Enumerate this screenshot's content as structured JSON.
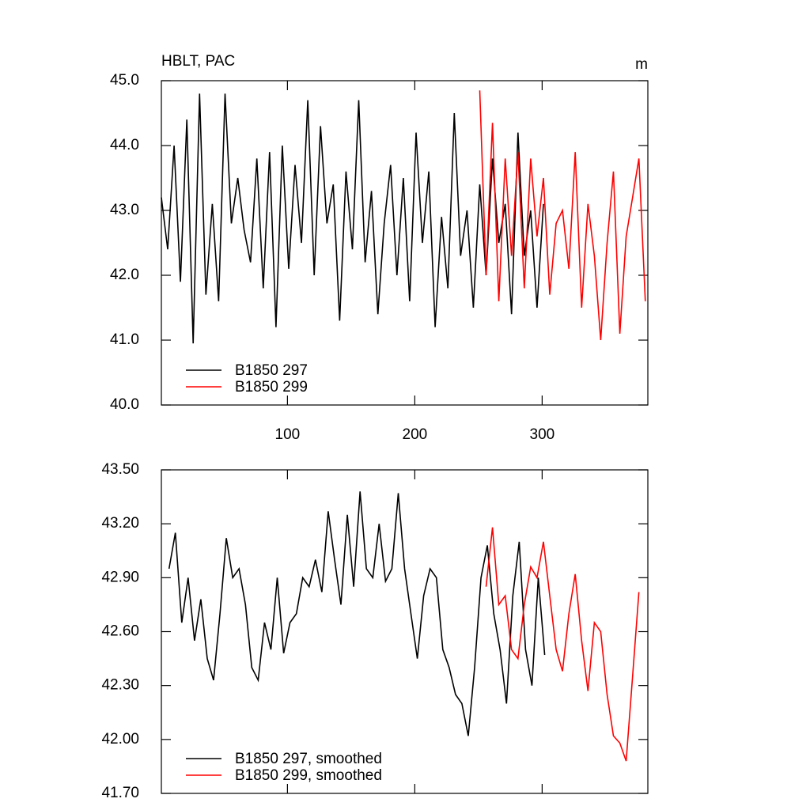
{
  "chart_data": [
    {
      "type": "line",
      "title": "HBLT, PAC",
      "units": "m",
      "xlim": [
        1,
        383
      ],
      "xticks": [
        100,
        200,
        300
      ],
      "xtick_labels_shown": true,
      "ylim": [
        40,
        45
      ],
      "yticks": [
        {
          "value": 40,
          "label": "40.0"
        },
        {
          "value": 41,
          "label": "41.0"
        },
        {
          "value": 42,
          "label": "42.0"
        },
        {
          "value": 43,
          "label": "43.0"
        },
        {
          "value": 44,
          "label": "44.0"
        },
        {
          "value": 45,
          "label": "45.0"
        }
      ],
      "legend": "lower left",
      "series": [
        {
          "name": "B1850 297",
          "color": "#000000",
          "x": [
            1,
            6,
            11,
            16,
            21,
            26,
            31,
            36,
            41,
            46,
            51,
            56,
            61,
            66,
            71,
            76,
            81,
            86,
            91,
            96,
            101,
            106,
            111,
            116,
            121,
            126,
            131,
            136,
            141,
            146,
            151,
            156,
            161,
            166,
            171,
            176,
            181,
            186,
            191,
            196,
            201,
            206,
            211,
            216,
            221,
            226,
            231,
            236,
            241,
            246,
            251,
            256,
            261,
            266,
            271,
            276,
            281,
            286,
            291,
            296,
            301
          ],
          "values": [
            43.2,
            42.4,
            44.0,
            41.9,
            44.4,
            40.95,
            44.8,
            41.7,
            43.1,
            41.6,
            44.8,
            42.8,
            43.5,
            42.7,
            42.2,
            43.8,
            41.8,
            43.9,
            41.2,
            44.0,
            42.1,
            43.7,
            42.5,
            44.7,
            42.0,
            44.3,
            42.8,
            43.4,
            41.3,
            43.6,
            42.4,
            44.7,
            42.2,
            43.3,
            41.4,
            42.8,
            43.7,
            42.0,
            43.5,
            41.6,
            44.2,
            42.5,
            43.6,
            41.2,
            42.9,
            41.8,
            44.5,
            42.3,
            43.0,
            41.5,
            43.4,
            42.0,
            43.8,
            42.5,
            43.1,
            41.4,
            44.2,
            42.3,
            43.0,
            41.5,
            43.1
          ]
        },
        {
          "name": "B1850 299",
          "color": "#ff0000",
          "x": [
            251,
            256,
            261,
            266,
            271,
            276,
            281,
            286,
            291,
            296,
            301,
            306,
            311,
            316,
            321,
            326,
            331,
            336,
            341,
            346,
            351,
            356,
            361,
            366,
            371,
            376,
            381
          ],
          "values": [
            44.85,
            42.0,
            44.35,
            41.6,
            43.8,
            42.3,
            43.9,
            41.8,
            43.8,
            42.6,
            43.5,
            41.7,
            42.8,
            43.0,
            42.1,
            43.9,
            41.5,
            43.1,
            42.3,
            41.0,
            42.5,
            43.6,
            41.1,
            42.6,
            43.2,
            43.8,
            41.6
          ]
        }
      ]
    },
    {
      "type": "line",
      "xlim": [
        1,
        383
      ],
      "xticks": [
        100,
        200,
        300
      ],
      "xtick_labels_shown": false,
      "ylim": [
        41.7,
        43.5
      ],
      "yticks": [
        {
          "value": 41.7,
          "label": "41.70"
        },
        {
          "value": 42,
          "label": "42.00"
        },
        {
          "value": 42.3,
          "label": "42.30"
        },
        {
          "value": 42.6,
          "label": "42.60"
        },
        {
          "value": 42.9,
          "label": "42.90"
        },
        {
          "value": 43.2,
          "label": "43.20"
        },
        {
          "value": 43.5,
          "label": "43.50"
        }
      ],
      "legend": "lower left",
      "series": [
        {
          "name": "B1850 297, smoothed",
          "color": "#000000",
          "x": [
            7,
            12,
            17,
            22,
            27,
            32,
            37,
            42,
            47,
            52,
            57,
            62,
            67,
            72,
            77,
            82,
            87,
            92,
            97,
            102,
            107,
            112,
            117,
            122,
            127,
            132,
            137,
            142,
            147,
            152,
            157,
            162,
            167,
            172,
            177,
            182,
            187,
            192,
            197,
            202,
            207,
            212,
            217,
            222,
            227,
            232,
            237,
            242,
            247,
            252,
            257,
            262,
            267,
            272,
            277,
            282,
            287,
            292,
            297,
            302
          ],
          "values": [
            42.95,
            43.15,
            42.65,
            42.9,
            42.55,
            42.78,
            42.45,
            42.33,
            42.7,
            43.12,
            42.9,
            42.95,
            42.75,
            42.4,
            42.33,
            42.65,
            42.5,
            42.9,
            42.48,
            42.65,
            42.7,
            42.9,
            42.85,
            43.0,
            42.82,
            43.27,
            43.0,
            42.75,
            43.25,
            42.85,
            43.38,
            42.95,
            42.9,
            43.2,
            42.88,
            42.95,
            43.37,
            42.95,
            42.7,
            42.45,
            42.8,
            42.95,
            42.9,
            42.5,
            42.4,
            42.25,
            42.2,
            42.02,
            42.4,
            42.9,
            43.08,
            42.7,
            42.5,
            42.2,
            42.8,
            43.1,
            42.5,
            42.3,
            42.9,
            42.47
          ]
        },
        {
          "name": "B1850 299, smoothed",
          "color": "#ff0000",
          "x": [
            256,
            261,
            266,
            271,
            276,
            281,
            286,
            291,
            296,
            301,
            306,
            311,
            316,
            321,
            326,
            331,
            336,
            341,
            346,
            351,
            356,
            361,
            366,
            371,
            376
          ],
          "values": [
            42.85,
            43.18,
            42.75,
            42.8,
            42.5,
            42.45,
            42.75,
            42.96,
            42.9,
            43.1,
            42.8,
            42.5,
            42.38,
            42.7,
            42.92,
            42.55,
            42.27,
            42.65,
            42.6,
            42.25,
            42.02,
            41.98,
            41.88,
            42.35,
            42.82
          ]
        }
      ]
    }
  ]
}
